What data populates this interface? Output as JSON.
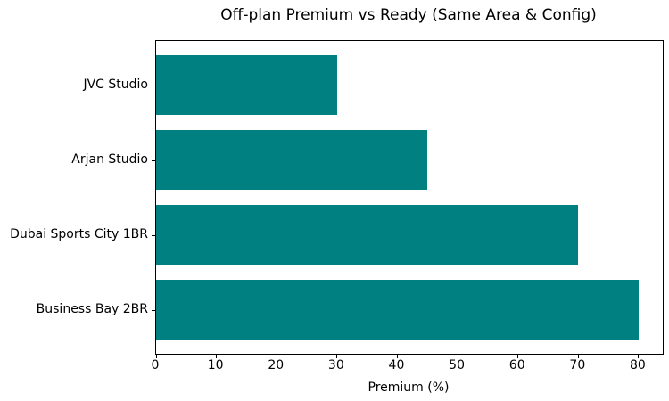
{
  "chart_data": {
    "type": "bar",
    "orientation": "horizontal",
    "title": "Off-plan Premium vs Ready (Same Area & Config)",
    "xlabel": "Premium (%)",
    "ylabel": "",
    "categories": [
      "JVC Studio",
      "Arjan Studio",
      "Dubai Sports City 1BR",
      "Business Bay 2BR"
    ],
    "values": [
      30,
      45,
      70,
      80
    ],
    "xticks": [
      0,
      10,
      20,
      30,
      40,
      50,
      60,
      70,
      80
    ],
    "xlim": [
      0,
      84
    ],
    "bar_color": "#008080",
    "background_color": "#ffffff",
    "axis_color": "#000000",
    "grid": false,
    "legend": null
  }
}
